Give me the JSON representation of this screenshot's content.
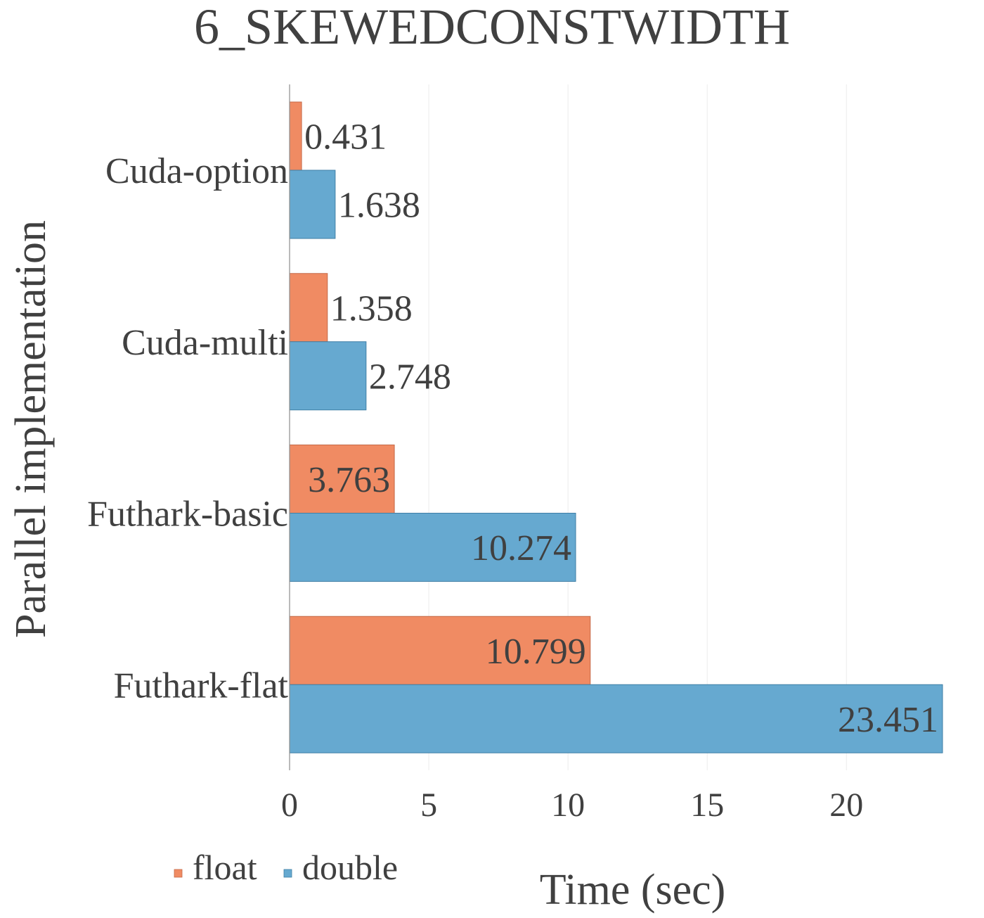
{
  "chart_data": {
    "type": "bar",
    "orientation": "horizontal",
    "title": "6_SKEWEDCONSTWIDTH",
    "xlabel": "Time (sec)",
    "ylabel": "Parallel implementation",
    "categories": [
      "Cuda-option",
      "Cuda-multi",
      "Futhark-basic",
      "Futhark-flat"
    ],
    "series": [
      {
        "name": "float",
        "color": "#f08b63",
        "stroke": "#c46a48",
        "values": [
          0.431,
          1.358,
          3.763,
          10.799
        ],
        "labels": [
          "0.431",
          "1.358",
          "3.763",
          "10.799"
        ]
      },
      {
        "name": "double",
        "color": "#66a9d0",
        "stroke": "#3f7fa6",
        "values": [
          1.638,
          2.748,
          10.274,
          23.451
        ],
        "labels": [
          "1.638",
          "2.748",
          "10.274",
          "23.451"
        ]
      }
    ],
    "xlim": [
      0,
      23.451
    ],
    "xticks": [
      0,
      5,
      10,
      15,
      20
    ],
    "xtick_labels": [
      "0",
      "5",
      "10",
      "15",
      "20"
    ],
    "grid": "vertical",
    "legend": "bottom-left"
  }
}
